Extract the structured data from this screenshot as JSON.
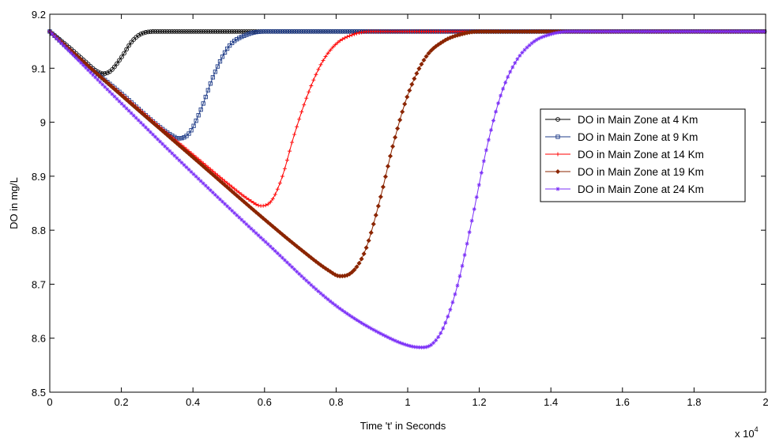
{
  "chart_data": {
    "type": "line",
    "title": "",
    "xlabel": "Time 't' in Seconds",
    "ylabel": "DO in mg/L",
    "x_exponent_label": "x 10",
    "x_exponent_power": "4",
    "xlim": [
      0,
      2
    ],
    "ylim": [
      8.5,
      9.2
    ],
    "x_ticks": [
      0,
      0.2,
      0.4,
      0.6,
      0.8,
      1,
      1.2,
      1.4,
      1.6,
      1.8,
      2
    ],
    "x_tick_labels": [
      "0",
      "0.2",
      "0.4",
      "0.6",
      "0.8",
      "1",
      "1.2",
      "1.4",
      "1.6",
      "1.8",
      "2"
    ],
    "y_ticks": [
      8.5,
      8.6,
      8.7,
      8.8,
      8.9,
      9,
      9.1,
      9.2
    ],
    "y_tick_labels": [
      "8.5",
      "8.6",
      "8.7",
      "8.8",
      "8.9",
      "9",
      "9.1",
      "9.2"
    ],
    "grid": false,
    "legend_position": "right",
    "series": [
      {
        "name": "DO in Main Zone at 4 Km",
        "color": "#000000",
        "marker": "circle",
        "x": [
          0,
          0.05,
          0.1,
          0.13,
          0.15,
          0.17,
          0.2,
          0.23,
          0.26,
          0.3,
          0.4,
          0.6,
          1.0,
          2.0
        ],
        "y": [
          9.168,
          9.141,
          9.112,
          9.095,
          9.09,
          9.095,
          9.12,
          9.15,
          9.165,
          9.168,
          9.168,
          9.168,
          9.168,
          9.168
        ]
      },
      {
        "name": "DO in Main Zone at 9 Km",
        "color": "#1f3c88",
        "marker": "square",
        "x": [
          0,
          0.1,
          0.2,
          0.3,
          0.34,
          0.36,
          0.39,
          0.42,
          0.46,
          0.5,
          0.55,
          0.6,
          0.7,
          1.0,
          2.0
        ],
        "y": [
          9.168,
          9.108,
          9.053,
          8.995,
          8.976,
          8.97,
          8.98,
          9.02,
          9.09,
          9.14,
          9.162,
          9.168,
          9.168,
          9.168,
          9.168
        ]
      },
      {
        "name": "DO in Main Zone at 14 Km",
        "color": "#ff0000",
        "marker": "plus",
        "x": [
          0,
          0.1,
          0.2,
          0.3,
          0.4,
          0.5,
          0.56,
          0.59,
          0.62,
          0.65,
          0.68,
          0.72,
          0.76,
          0.8,
          0.85,
          0.9,
          1.0,
          2.0
        ],
        "y": [
          9.168,
          9.108,
          9.052,
          8.995,
          8.94,
          8.885,
          8.855,
          8.845,
          8.855,
          8.9,
          8.97,
          9.05,
          9.11,
          9.145,
          9.163,
          9.168,
          9.168,
          9.168
        ]
      },
      {
        "name": "DO in Main Zone at 19 Km",
        "color": "#8b2500",
        "marker": "diamond",
        "x": [
          0,
          0.2,
          0.4,
          0.6,
          0.7,
          0.78,
          0.81,
          0.84,
          0.88,
          0.92,
          0.96,
          1.0,
          1.05,
          1.1,
          1.15,
          1.2,
          1.3,
          2.0
        ],
        "y": [
          9.168,
          9.05,
          8.935,
          8.82,
          8.765,
          8.725,
          8.715,
          8.72,
          8.76,
          8.85,
          8.96,
          9.05,
          9.12,
          9.15,
          9.163,
          9.168,
          9.168,
          9.168
        ]
      },
      {
        "name": "DO in Main Zone at 24 Km",
        "color": "#7b2ff7",
        "marker": "star",
        "x": [
          0,
          0.2,
          0.4,
          0.6,
          0.8,
          0.95,
          1.01,
          1.04,
          1.07,
          1.1,
          1.14,
          1.18,
          1.22,
          1.26,
          1.3,
          1.35,
          1.4,
          1.45,
          2.0
        ],
        "y": [
          9.168,
          9.035,
          8.905,
          8.78,
          8.66,
          8.6,
          8.585,
          8.583,
          8.59,
          8.62,
          8.7,
          8.82,
          8.95,
          9.05,
          9.11,
          9.148,
          9.163,
          9.168,
          9.168
        ]
      }
    ]
  }
}
